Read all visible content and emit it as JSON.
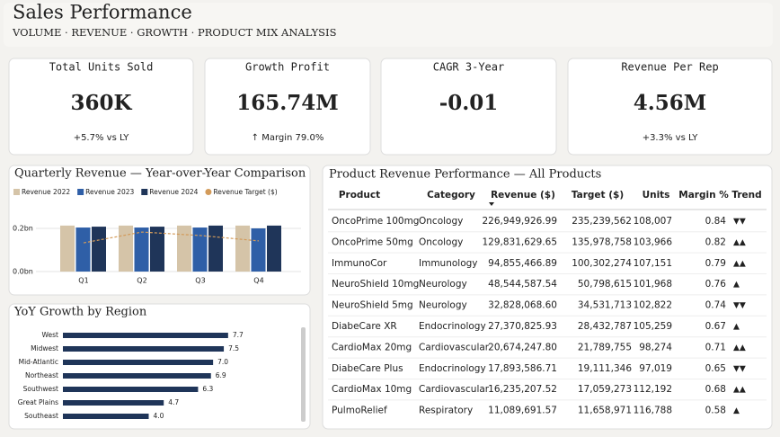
{
  "header": {
    "title": "Sales Performance",
    "subtitle": "VOLUME · REVENUE · GROWTH · PRODUCT MIX ANALYSIS"
  },
  "kpis": [
    {
      "label": "Total Units Sold",
      "value": "360K",
      "note": "+5.7% vs LY"
    },
    {
      "label": "Growth Profit",
      "value": "165.74M",
      "note": "↑ Margin 79.0%"
    },
    {
      "label": "CAGR 3-Year",
      "value": "-0.01",
      "note": ""
    },
    {
      "label": "Revenue Per Rep",
      "value": "4.56M",
      "note": "+3.3% vs LY"
    }
  ],
  "quarterly": {
    "type": "bar",
    "title": "Quarterly Revenue — Year-over-Year Comparison",
    "categories": [
      "Q1",
      "Q2",
      "Q3",
      "Q4"
    ],
    "series": [
      {
        "name": "Revenue 2022",
        "color": "#d5c4a8",
        "values": [
          0.213,
          0.213,
          0.213,
          0.213
        ]
      },
      {
        "name": "Revenue 2023",
        "color": "#2f5fa7",
        "values": [
          0.204,
          0.204,
          0.204,
          0.2
        ]
      },
      {
        "name": "Revenue 2024",
        "color": "#1f3559",
        "values": [
          0.208,
          0.208,
          0.213,
          0.213
        ]
      },
      {
        "name": "Revenue Target ($)",
        "color": "#d39b5a",
        "type": "line",
        "values": [
          0.133,
          0.183,
          0.167,
          0.142
        ]
      }
    ],
    "ylim": [
      0,
      0.25
    ],
    "yticks": [
      {
        "value": 0,
        "label": "0.0bn"
      },
      {
        "value": 0.2,
        "label": "0.2bn"
      }
    ]
  },
  "region": {
    "type": "bar",
    "title": "YoY Growth by Region",
    "categories": [
      "West",
      "Midwest",
      "Mid-Atlantic",
      "Northeast",
      "Southwest",
      "Great Plains",
      "Southeast"
    ],
    "values": [
      7.7,
      7.5,
      7.0,
      6.9,
      6.3,
      4.7,
      4.0
    ],
    "value_labels": [
      "7.7",
      "7.5",
      "7.0",
      "6.9",
      "6.3",
      "4.7",
      "4.0"
    ],
    "color": "#1f3559",
    "xlim": [
      0,
      8
    ]
  },
  "table": {
    "title": "Product Revenue Performance — All Products",
    "columns": [
      "Product",
      "Category",
      "Revenue ($)",
      "Target ($)",
      "Units",
      "Margin %",
      "Trend"
    ],
    "rows": [
      [
        "OncoPrime 100mg",
        "Oncology",
        "226,949,926.99",
        "235,239,562",
        "108,007",
        "0.84",
        "▼▼"
      ],
      [
        "OncoPrime 50mg",
        "Oncology",
        "129,831,629.65",
        "135,978,758",
        "103,966",
        "0.82",
        "▲▲"
      ],
      [
        "ImmunoCor",
        "Immunology",
        "94,855,466.89",
        "100,302,274",
        "107,151",
        "0.79",
        "▲▲"
      ],
      [
        "NeuroShield 10mg",
        "Neurology",
        "48,544,587.54",
        "50,798,615",
        "101,968",
        "0.76",
        "▲"
      ],
      [
        "NeuroShield 5mg",
        "Neurology",
        "32,828,068.60",
        "34,531,713",
        "102,822",
        "0.74",
        "▼▼"
      ],
      [
        "DiabeCare XR",
        "Endocrinology",
        "27,370,825.93",
        "28,432,787",
        "105,259",
        "0.67",
        "▲"
      ],
      [
        "CardioMax 20mg",
        "Cardiovascular",
        "20,674,247.80",
        "21,789,755",
        "98,274",
        "0.71",
        "▲▲"
      ],
      [
        "DiabeCare Plus",
        "Endocrinology",
        "17,893,586.71",
        "19,111,346",
        "97,019",
        "0.65",
        "▼▼"
      ],
      [
        "CardioMax 10mg",
        "Cardiovascular",
        "16,235,207.52",
        "17,059,273",
        "112,192",
        "0.68",
        "▲▲"
      ],
      [
        "PulmoRelief",
        "Respiratory",
        "11,089,691.57",
        "11,658,971",
        "116,788",
        "0.58",
        "▲"
      ]
    ]
  }
}
